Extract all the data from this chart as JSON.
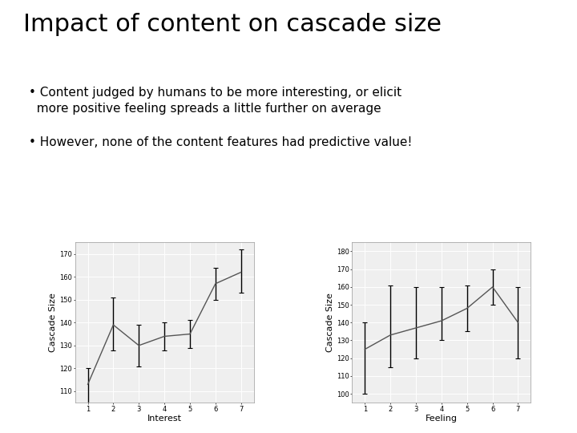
{
  "title": "Impact of content on cascade size",
  "bullet1": "Content judged by humans to be more interesting, or elicit\n  more positive feeling spreads a little further on average",
  "bullet2": "However, none of the content features had predictive value!",
  "chart1": {
    "xlabel": "Interest",
    "ylabel": "Cascade Size",
    "x": [
      1,
      2,
      3,
      4,
      5,
      6,
      7
    ],
    "y": [
      113,
      139,
      130,
      134,
      135,
      157,
      162
    ],
    "yerr_low": [
      13,
      11,
      9,
      6,
      6,
      7,
      9
    ],
    "yerr_high": [
      7,
      12,
      9,
      6,
      6,
      7,
      10
    ],
    "ylim": [
      105,
      175
    ],
    "yticks": [
      110,
      120,
      130,
      140,
      150,
      160,
      170
    ]
  },
  "chart2": {
    "xlabel": "Feeling",
    "ylabel": "Cascade Size",
    "x": [
      1,
      2,
      3,
      4,
      5,
      6,
      7
    ],
    "y": [
      125,
      133,
      137,
      141,
      148,
      160,
      140
    ],
    "yerr_low": [
      25,
      18,
      17,
      11,
      13,
      10,
      20
    ],
    "yerr_high": [
      15,
      28,
      23,
      19,
      13,
      10,
      20
    ],
    "ylim": [
      95,
      185
    ],
    "yticks": [
      100,
      110,
      120,
      130,
      140,
      150,
      160,
      170,
      180
    ]
  },
  "background_color": "#ffffff",
  "plot_bg_color": "#efefef",
  "line_color": "#555555",
  "title_fontsize": 22,
  "bullet_fontsize": 11,
  "label_fontsize": 7,
  "tick_fontsize": 6
}
